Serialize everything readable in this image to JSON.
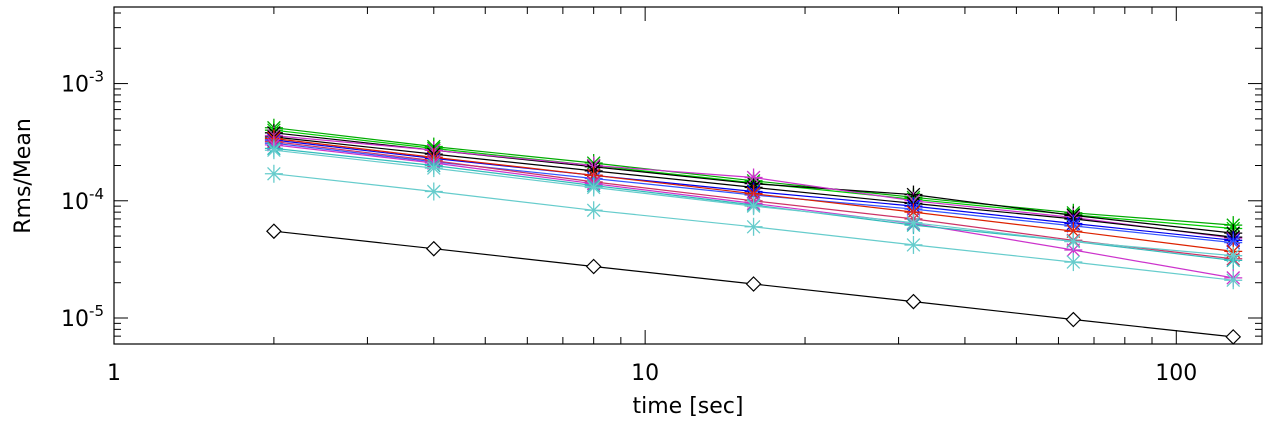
{
  "chart_data": {
    "type": "line",
    "title": "",
    "xlabel": "time [sec]",
    "ylabel": "Rms/Mean",
    "x_scale": "log",
    "y_scale": "log",
    "xlim": [
      1,
      145
    ],
    "ylim": [
      6e-06,
      0.0045
    ],
    "grid": false,
    "x_ticks": [
      {
        "value": 1,
        "label": "1"
      },
      {
        "value": 10,
        "label": "10"
      },
      {
        "value": 100,
        "label": "100"
      }
    ],
    "y_ticks": [
      {
        "value": 1e-05,
        "base": "10",
        "exp": "-5"
      },
      {
        "value": 0.0001,
        "base": "10",
        "exp": "-4"
      },
      {
        "value": 0.001,
        "base": "10",
        "exp": "-3"
      }
    ],
    "x": [
      2,
      4,
      8,
      16,
      32,
      64,
      128
    ],
    "series": [
      {
        "color": "#000000",
        "marker": "diamond",
        "values": [
          5.5e-05,
          3.9e-05,
          2.75e-05,
          1.95e-05,
          1.38e-05,
          9.7e-06,
          6.9e-06
        ]
      },
      {
        "color": "#00aa00",
        "marker": "asterisk",
        "values": [
          0.00042,
          0.00029,
          0.00021,
          0.000148,
          0.000107,
          7.9e-05,
          6.2e-05
        ]
      },
      {
        "color": "#00cc00",
        "marker": "asterisk",
        "values": [
          0.0004,
          0.00028,
          0.0002,
          0.000142,
          0.000103,
          7.6e-05,
          5.8e-05
        ]
      },
      {
        "color": "#000000",
        "marker": "asterisk",
        "values": [
          0.00038,
          0.00027,
          0.000195,
          0.00014,
          0.000113,
          7.5e-05,
          5.3e-05
        ]
      },
      {
        "color": "#cc33cc",
        "marker": "asterisk",
        "values": [
          0.00036,
          0.00027,
          0.0002,
          0.000158,
          0.0001,
          7.2e-05,
          4.8e-05
        ]
      },
      {
        "color": "#000000",
        "marker": "asterisk",
        "values": [
          0.00035,
          0.00025,
          0.00018,
          0.00013,
          9.5e-05,
          7e-05,
          4.9e-05
        ]
      },
      {
        "color": "#0000ee",
        "marker": "asterisk",
        "values": [
          0.00033,
          0.00023,
          0.000165,
          0.00012,
          9e-05,
          6.4e-05,
          4.6e-05
        ]
      },
      {
        "color": "#3355ff",
        "marker": "asterisk",
        "values": [
          0.00031,
          0.000215,
          0.000155,
          0.000112,
          8.5e-05,
          6.1e-05,
          4.4e-05
        ]
      },
      {
        "color": "#dd2200",
        "marker": "asterisk",
        "values": [
          0.00034,
          0.000235,
          0.000165,
          0.000115,
          8e-05,
          5.5e-05,
          3.7e-05
        ]
      },
      {
        "color": "#cc3366",
        "marker": "asterisk",
        "values": [
          0.00032,
          0.00022,
          0.000145,
          0.0001,
          7e-05,
          4.6e-05,
          3.2e-05
        ]
      },
      {
        "color": "#cc33cc",
        "marker": "asterisk",
        "values": [
          0.0003,
          0.00021,
          0.00014,
          9.5e-05,
          6.4e-05,
          3.8e-05,
          2.2e-05
        ]
      },
      {
        "color": "#33bbbb",
        "marker": "asterisk",
        "values": [
          0.00028,
          0.0002,
          0.000135,
          9.2e-05,
          6.2e-05,
          4.5e-05,
          3.1e-05
        ]
      },
      {
        "color": "#66cccc",
        "marker": "asterisk",
        "values": [
          0.00027,
          0.00019,
          0.00013,
          9e-05,
          6.5e-05,
          4.5e-05,
          3.4e-05
        ]
      },
      {
        "color": "#66cccc",
        "marker": "asterisk",
        "values": [
          0.00017,
          0.00012,
          8.3e-05,
          6e-05,
          4.2e-05,
          3e-05,
          2.1e-05
        ]
      }
    ]
  }
}
